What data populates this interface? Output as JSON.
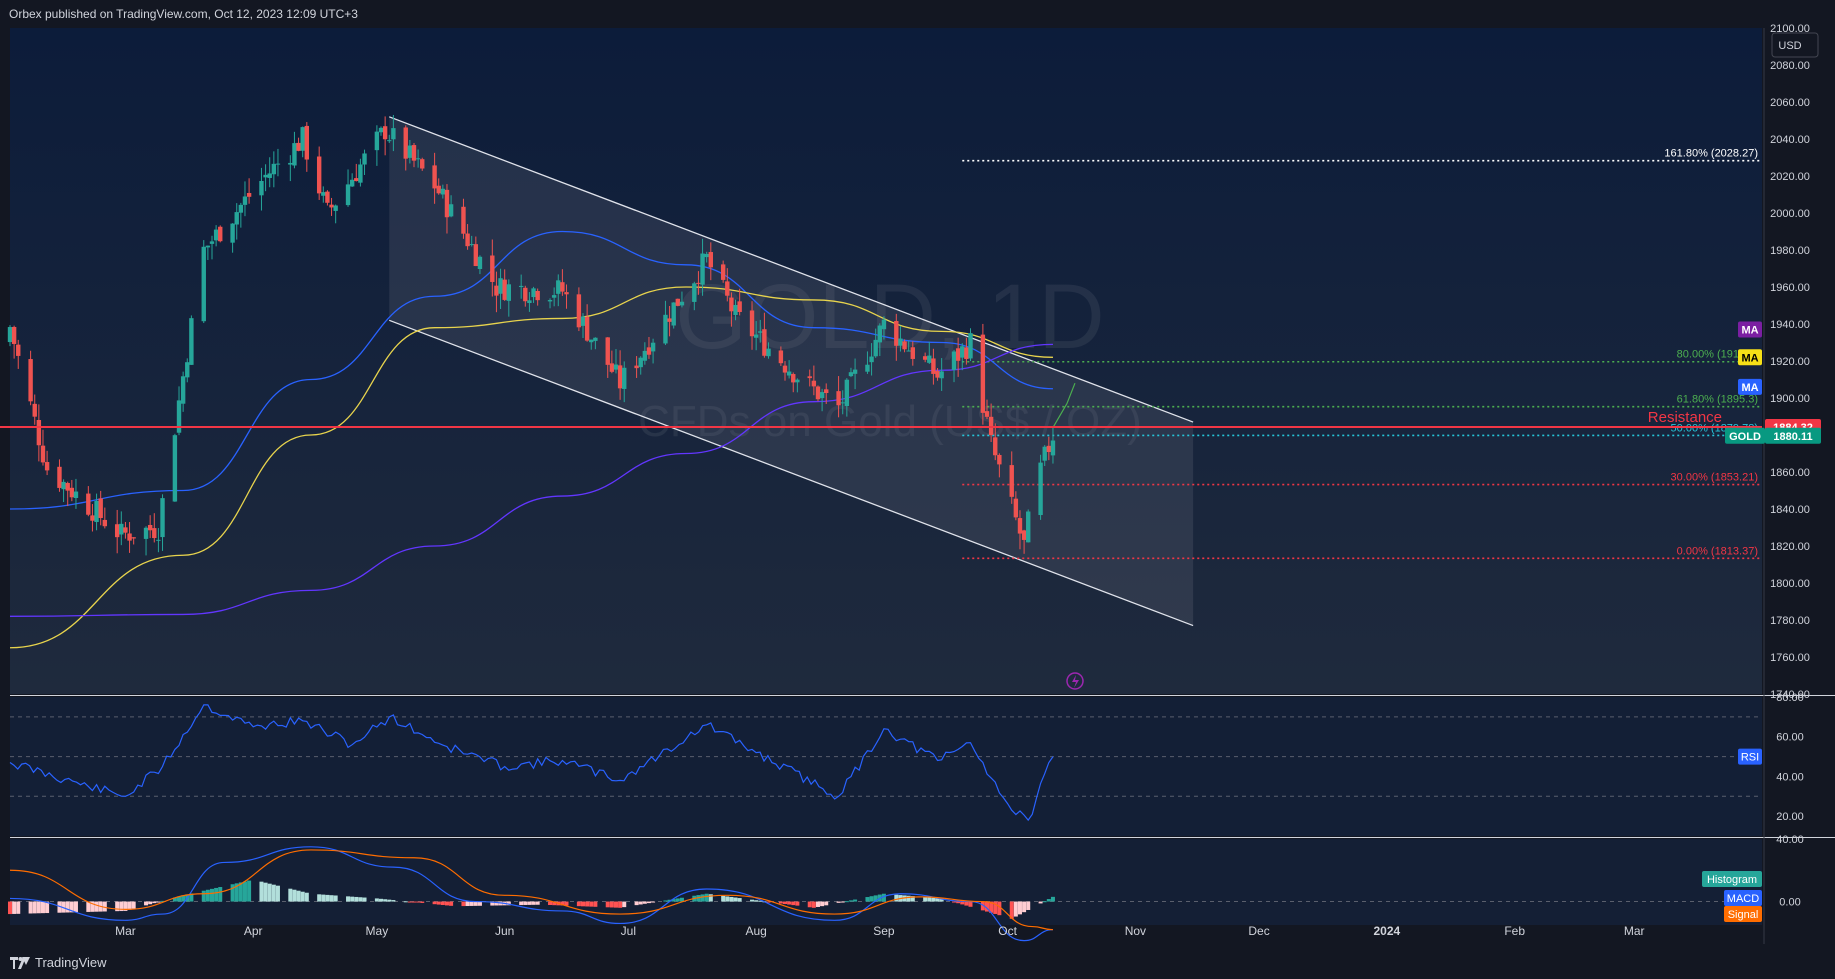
{
  "header": {
    "publish_line": "Orbex published on TradingView.com, Oct 12, 2023 12:09 UTC+3"
  },
  "footer": {
    "brand": "TradingView"
  },
  "colors": {
    "background": "#131722",
    "panel_top": "#0e1e3a",
    "bull": "#26a69a",
    "bear": "#ef5350",
    "ma_blue": "#2962ff",
    "ma_yellow": "#e8d44d",
    "ma_purple": "#6236ff",
    "resistance": "#f23645",
    "rsi_line": "#2962ff",
    "macd_line": "#2962ff",
    "signal_line": "#ff6d00"
  },
  "watermark": {
    "symbol": "GOLD, 1D",
    "description": "CFDs on Gold (US$ / OZ)"
  },
  "currency_button": "USD",
  "chart_data": [
    {
      "type": "line",
      "title": "",
      "price_scale": {
        "range": [
          1740,
          2100
        ],
        "ticks": [
          "2100.00",
          "2080.00",
          "2060.00",
          "2040.00",
          "2020.00",
          "2000.00",
          "1980.00",
          "1960.00",
          "1940.00",
          "1920.00",
          "1900.00",
          "1880.00",
          "1860.00",
          "1840.00",
          "1820.00",
          "1800.00",
          "1780.00",
          "1760.00",
          "1740.00"
        ]
      },
      "time_axis": {
        "labels": [
          "Mar",
          "Apr",
          "May",
          "Jun",
          "Jul",
          "Aug",
          "Sep",
          "Oct",
          "Nov",
          "Dec",
          "2024",
          "Feb",
          "Mar"
        ]
      },
      "candles_ohlc_approx": {
        "start": "2023-02-01",
        "last": "2023-10-12",
        "anchor_closes": [
          [
            "2023-02-02",
            1930
          ],
          [
            "2023-02-10",
            1862
          ],
          [
            "2023-02-28",
            1826
          ],
          [
            "2023-03-09",
            1830
          ],
          [
            "2023-03-20",
            1980
          ],
          [
            "2023-04-04",
            2020
          ],
          [
            "2023-04-13",
            2040
          ],
          [
            "2023-04-19",
            2000
          ],
          [
            "2023-05-03",
            2045
          ],
          [
            "2023-05-15",
            2015
          ],
          [
            "2023-05-30",
            1960
          ],
          [
            "2023-06-15",
            1958
          ],
          [
            "2023-06-29",
            1908
          ],
          [
            "2023-07-20",
            1975
          ],
          [
            "2023-07-27",
            1944
          ],
          [
            "2023-08-14",
            1906
          ],
          [
            "2023-08-21",
            1895
          ],
          [
            "2023-09-01",
            1940
          ],
          [
            "2023-09-14",
            1912
          ],
          [
            "2023-09-22",
            1930
          ],
          [
            "2023-09-27",
            1875
          ],
          [
            "2023-10-05",
            1820
          ],
          [
            "2023-10-06",
            1832
          ],
          [
            "2023-10-09",
            1861
          ],
          [
            "2023-10-12",
            1880.11
          ]
        ]
      },
      "series": [
        {
          "name": "MA",
          "color": "#2962ff",
          "points": [
            [
              "2023-02-01",
              1840
            ],
            [
              "2023-03-15",
              1850
            ],
            [
              "2023-04-15",
              1910
            ],
            [
              "2023-05-15",
              1955
            ],
            [
              "2023-06-15",
              1990
            ],
            [
              "2023-07-15",
              1972
            ],
            [
              "2023-08-15",
              1938
            ],
            [
              "2023-09-15",
              1930
            ],
            [
              "2023-10-12",
              1905
            ]
          ]
        },
        {
          "name": "MA",
          "color": "#e8d44d",
          "points": [
            [
              "2023-02-01",
              1765
            ],
            [
              "2023-03-15",
              1815
            ],
            [
              "2023-04-15",
              1880
            ],
            [
              "2023-05-15",
              1938
            ],
            [
              "2023-06-15",
              1943
            ],
            [
              "2023-07-15",
              1960
            ],
            [
              "2023-08-15",
              1953
            ],
            [
              "2023-09-15",
              1936
            ],
            [
              "2023-10-12",
              1922
            ]
          ]
        },
        {
          "name": "MA",
          "color": "#6236ff",
          "points": [
            [
              "2023-02-01",
              1782
            ],
            [
              "2023-03-15",
              1783
            ],
            [
              "2023-04-15",
              1796
            ],
            [
              "2023-05-15",
              1820
            ],
            [
              "2023-06-15",
              1847
            ],
            [
              "2023-07-15",
              1870
            ],
            [
              "2023-08-15",
              1898
            ],
            [
              "2023-09-15",
              1915
            ],
            [
              "2023-10-12",
              1929
            ]
          ]
        }
      ],
      "channel": {
        "upper": [
          [
            "2023-05-04",
            2052
          ],
          [
            "2023-11-15",
            1887
          ]
        ],
        "lower": [
          [
            "2023-05-04",
            1942
          ],
          [
            "2023-11-15",
            1777
          ]
        ]
      },
      "resistance": {
        "value": 1884.32,
        "label": "Resistance"
      },
      "fibonacci": [
        {
          "level": "161.80% (2028.27)",
          "value": 2028.27,
          "color": "#ffffff"
        },
        {
          "level": "80.00% (1919.6)",
          "value": 1919.6,
          "color": "#4caf50"
        },
        {
          "level": "61.80% (1895.3)",
          "value": 1895.3,
          "color": "#4caf50"
        },
        {
          "level": "50.00% (1879.78)",
          "value": 1879.78,
          "color": "#26c6da"
        },
        {
          "level": "30.00% (1853.21)",
          "value": 1853.21,
          "color": "#f23645"
        },
        {
          "level": "0.00% (1813.37)",
          "value": 1813.37,
          "color": "#f23645"
        }
      ],
      "price_tags": [
        {
          "label": "MA",
          "value": 1937,
          "color": "#7b1fa2"
        },
        {
          "label": "MA",
          "value": 1922,
          "color": "#f7e017",
          "text_color": "#000000"
        },
        {
          "label": "MA",
          "value": 1906,
          "color": "#2962ff"
        },
        {
          "label": "1884.32",
          "value": 1884.32,
          "color": "#f23645"
        },
        {
          "label": "GOLD",
          "value": 1880.11,
          "color": "#089981"
        },
        {
          "label": "1880.11",
          "value": 1880.11,
          "color": "#089981"
        }
      ]
    },
    {
      "type": "line",
      "indicator": "RSI",
      "range": [
        10,
        80
      ],
      "ticks": [
        "80.00",
        "60.00",
        "40.00",
        "20.00"
      ],
      "bands": [
        70,
        50,
        30
      ],
      "label": "RSI",
      "values": [
        [
          "2023-02-01",
          47
        ],
        [
          "2023-02-20",
          35
        ],
        [
          "2023-03-01",
          30
        ],
        [
          "2023-03-10",
          45
        ],
        [
          "2023-03-20",
          76
        ],
        [
          "2023-04-01",
          65
        ],
        [
          "2023-04-13",
          68
        ],
        [
          "2023-04-25",
          56
        ],
        [
          "2023-05-04",
          70
        ],
        [
          "2023-05-18",
          55
        ],
        [
          "2023-06-01",
          45
        ],
        [
          "2023-06-15",
          48
        ],
        [
          "2023-06-29",
          38
        ],
        [
          "2023-07-20",
          66
        ],
        [
          "2023-08-01",
          52
        ],
        [
          "2023-08-21",
          30
        ],
        [
          "2023-09-01",
          64
        ],
        [
          "2023-09-14",
          48
        ],
        [
          "2023-09-22",
          57
        ],
        [
          "2023-10-02",
          23
        ],
        [
          "2023-10-06",
          18
        ],
        [
          "2023-10-12",
          50
        ]
      ]
    },
    {
      "type": "bar",
      "indicator": "MACD",
      "range": [
        -15,
        40
      ],
      "ticks": [
        "40.00",
        "0.00"
      ],
      "labels": [
        "Histogram",
        "MACD",
        "Signal"
      ],
      "histogram": [
        [
          "2023-02-01",
          -8
        ],
        [
          "2023-03-01",
          -6
        ],
        [
          "2023-03-15",
          4
        ],
        [
          "2023-04-01",
          14
        ],
        [
          "2023-04-15",
          5
        ],
        [
          "2023-05-01",
          2
        ],
        [
          "2023-05-20",
          -3
        ],
        [
          "2023-06-10",
          -2
        ],
        [
          "2023-06-29",
          -4
        ],
        [
          "2023-07-20",
          5
        ],
        [
          "2023-08-15",
          -4
        ],
        [
          "2023-09-01",
          5
        ],
        [
          "2023-09-15",
          2
        ],
        [
          "2023-10-02",
          -11
        ],
        [
          "2023-10-12",
          3
        ]
      ],
      "macd": [
        [
          "2023-02-01",
          2
        ],
        [
          "2023-03-01",
          -12
        ],
        [
          "2023-03-10",
          -8
        ],
        [
          "2023-03-25",
          25
        ],
        [
          "2023-04-15",
          35
        ],
        [
          "2023-05-05",
          22
        ],
        [
          "2023-05-25",
          0
        ],
        [
          "2023-06-15",
          -6
        ],
        [
          "2023-06-29",
          -14
        ],
        [
          "2023-07-20",
          8
        ],
        [
          "2023-08-20",
          -12
        ],
        [
          "2023-09-05",
          5
        ],
        [
          "2023-09-22",
          0
        ],
        [
          "2023-10-05",
          -25
        ],
        [
          "2023-10-12",
          -18
        ]
      ],
      "signal": [
        [
          "2023-02-01",
          20
        ],
        [
          "2023-03-01",
          -5
        ],
        [
          "2023-03-20",
          5
        ],
        [
          "2023-04-15",
          33
        ],
        [
          "2023-05-10",
          28
        ],
        [
          "2023-06-01",
          4
        ],
        [
          "2023-06-29",
          -8
        ],
        [
          "2023-07-25",
          4
        ],
        [
          "2023-08-20",
          -8
        ],
        [
          "2023-09-10",
          3
        ],
        [
          "2023-09-25",
          0
        ],
        [
          "2023-10-07",
          -16
        ],
        [
          "2023-10-12",
          -18
        ]
      ]
    }
  ]
}
